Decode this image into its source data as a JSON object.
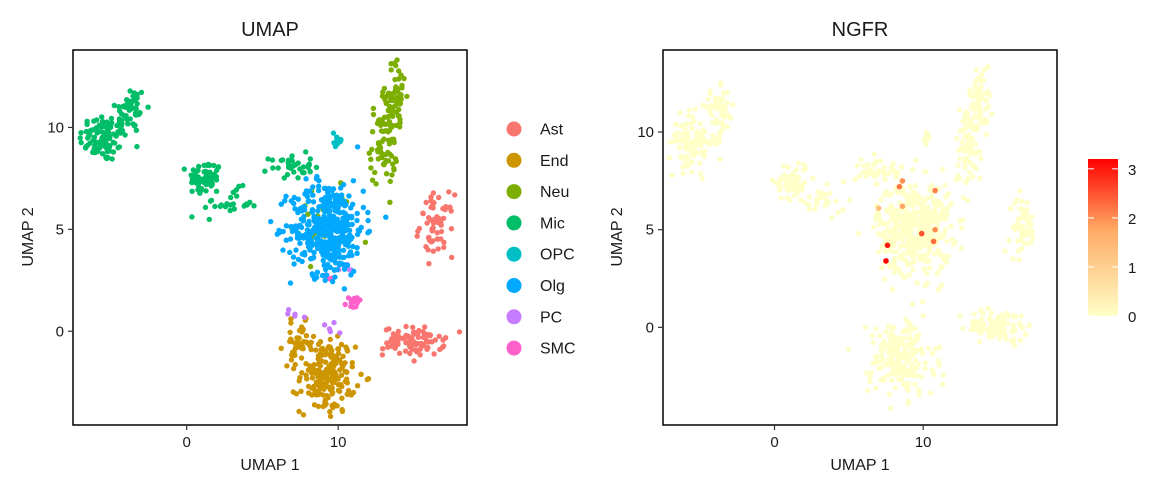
{
  "chart_data": [
    {
      "type": "scatter",
      "title": "UMAP",
      "xlabel": "UMAP 1",
      "ylabel": "UMAP 2",
      "xlim": [
        -7.5,
        18.5
      ],
      "ylim": [
        -4.6,
        13.8
      ],
      "x_ticks": [
        0,
        10
      ],
      "y_ticks": [
        0,
        5,
        10
      ],
      "legend_position": "right",
      "series": [
        {
          "name": "Ast",
          "color": "#F8766D",
          "clusters": [
            {
              "cx": 16.5,
              "cy": 5.2,
              "sx": 0.55,
              "sy": 0.75,
              "n": 60
            },
            {
              "cx": 15.0,
              "cy": -0.5,
              "sx": 1.0,
              "sy": 0.35,
              "n": 90
            }
          ]
        },
        {
          "name": "End",
          "color": "#CD9600",
          "clusters": [
            {
              "cx": 9.3,
              "cy": -2.2,
              "sx": 0.9,
              "sy": 0.9,
              "n": 180
            },
            {
              "cx": 7.4,
              "cy": -0.6,
              "sx": 0.5,
              "sy": 0.5,
              "n": 40
            }
          ]
        },
        {
          "name": "Neu",
          "color": "#7CAE00",
          "clusters": [
            {
              "cx": 13.8,
              "cy": 11.5,
              "sx": 0.35,
              "sy": 0.9,
              "n": 60
            },
            {
              "cx": 13.0,
              "cy": 9.2,
              "sx": 0.45,
              "sy": 1.0,
              "n": 70
            },
            {
              "cx": 9.0,
              "cy": 5.5,
              "sx": 1.0,
              "sy": 1.0,
              "n": 25
            }
          ]
        },
        {
          "name": "Mic",
          "color": "#00BE67",
          "clusters": [
            {
              "cx": -5.5,
              "cy": 9.5,
              "sx": 0.8,
              "sy": 0.6,
              "n": 100
            },
            {
              "cx": -3.7,
              "cy": 10.9,
              "sx": 0.5,
              "sy": 0.6,
              "n": 50
            },
            {
              "cx": 1.2,
              "cy": 7.5,
              "sx": 0.55,
              "sy": 0.45,
              "n": 60
            },
            {
              "cx": 2.9,
              "cy": 6.3,
              "sx": 0.9,
              "sy": 0.35,
              "n": 25
            },
            {
              "cx": 6.9,
              "cy": 8.1,
              "sx": 0.7,
              "sy": 0.3,
              "n": 35
            }
          ]
        },
        {
          "name": "OPC",
          "color": "#00BFC4",
          "clusters": [
            {
              "cx": 10.0,
              "cy": 9.4,
              "sx": 0.15,
              "sy": 0.2,
              "n": 12
            }
          ]
        },
        {
          "name": "Olg",
          "color": "#00A9FF",
          "clusters": [
            {
              "cx": 9.3,
              "cy": 5.1,
              "sx": 1.2,
              "sy": 1.15,
              "n": 420
            }
          ]
        },
        {
          "name": "PC",
          "color": "#C77CFF",
          "clusters": [
            {
              "cx": 10.6,
              "cy": 3.0,
              "sx": 0.4,
              "sy": 0.2,
              "n": 6
            },
            {
              "cx": 7.0,
              "cy": 0.7,
              "sx": 0.35,
              "sy": 0.25,
              "n": 5
            },
            {
              "cx": 9.6,
              "cy": 0.4,
              "sx": 0.4,
              "sy": 0.3,
              "n": 5
            }
          ]
        },
        {
          "name": "SMC",
          "color": "#FF61CC",
          "clusters": [
            {
              "cx": 11.0,
              "cy": 1.4,
              "sx": 0.25,
              "sy": 0.2,
              "n": 12
            },
            {
              "cx": 9.4,
              "cy": 2.5,
              "sx": 0.2,
              "sy": 0.15,
              "n": 5
            }
          ]
        }
      ]
    },
    {
      "type": "scatter",
      "title": "NGFR",
      "xlabel": "UMAP 1",
      "ylabel": "UMAP 2",
      "xlim": [
        -7.5,
        19.0
      ],
      "ylim": [
        -5.0,
        14.2
      ],
      "x_ticks": [
        0,
        10
      ],
      "y_ticks": [
        0,
        5,
        10
      ],
      "base_color": "#FFFFC8",
      "clusters": [
        {
          "cx": -5.5,
          "cy": 9.5,
          "sx": 0.8,
          "sy": 0.7,
          "n": 110
        },
        {
          "cx": -3.7,
          "cy": 11.0,
          "sx": 0.5,
          "sy": 0.6,
          "n": 50
        },
        {
          "cx": 1.2,
          "cy": 7.5,
          "sx": 0.55,
          "sy": 0.5,
          "n": 60
        },
        {
          "cx": 3.0,
          "cy": 6.4,
          "sx": 0.9,
          "sy": 0.35,
          "n": 25
        },
        {
          "cx": 7.0,
          "cy": 8.1,
          "sx": 0.8,
          "sy": 0.35,
          "n": 35
        },
        {
          "cx": 9.4,
          "cy": 5.1,
          "sx": 1.25,
          "sy": 1.2,
          "n": 420
        },
        {
          "cx": 13.8,
          "cy": 11.6,
          "sx": 0.35,
          "sy": 0.9,
          "n": 60
        },
        {
          "cx": 13.0,
          "cy": 9.3,
          "sx": 0.45,
          "sy": 1.0,
          "n": 70
        },
        {
          "cx": 16.7,
          "cy": 5.2,
          "sx": 0.45,
          "sy": 0.75,
          "n": 55
        },
        {
          "cx": 15.0,
          "cy": 0.1,
          "sx": 1.0,
          "sy": 0.4,
          "n": 90
        },
        {
          "cx": 8.5,
          "cy": -1.6,
          "sx": 1.1,
          "sy": 1.0,
          "n": 200
        },
        {
          "cx": 10.2,
          "cy": 9.6,
          "sx": 0.15,
          "sy": 0.2,
          "n": 10
        }
      ],
      "highlighted_points": [
        {
          "x": 7.5,
          "y": 3.4,
          "value": 3.2
        },
        {
          "x": 7.6,
          "y": 4.2,
          "value": 3.0
        },
        {
          "x": 8.6,
          "y": 7.5,
          "value": 2.0
        },
        {
          "x": 8.4,
          "y": 7.2,
          "value": 2.2
        },
        {
          "x": 10.8,
          "y": 7.0,
          "value": 2.1
        },
        {
          "x": 7.0,
          "y": 6.1,
          "value": 1.3
        },
        {
          "x": 8.6,
          "y": 6.2,
          "value": 1.8
        },
        {
          "x": 9.9,
          "y": 4.8,
          "value": 2.5
        },
        {
          "x": 10.7,
          "y": 4.4,
          "value": 2.3
        },
        {
          "x": 10.8,
          "y": 5.0,
          "value": 2.0
        }
      ],
      "colorbar": {
        "min": 0,
        "max": 3.2,
        "ticks": [
          {
            "value": 0,
            "label": "0"
          },
          {
            "value": 1,
            "label": "1"
          },
          {
            "value": 2,
            "label": "2"
          },
          {
            "value": 3,
            "label": "3"
          }
        ],
        "low_color": "#FFFFC8",
        "mid_color": "#FFAA64",
        "high_color": "#FF0000"
      }
    }
  ]
}
